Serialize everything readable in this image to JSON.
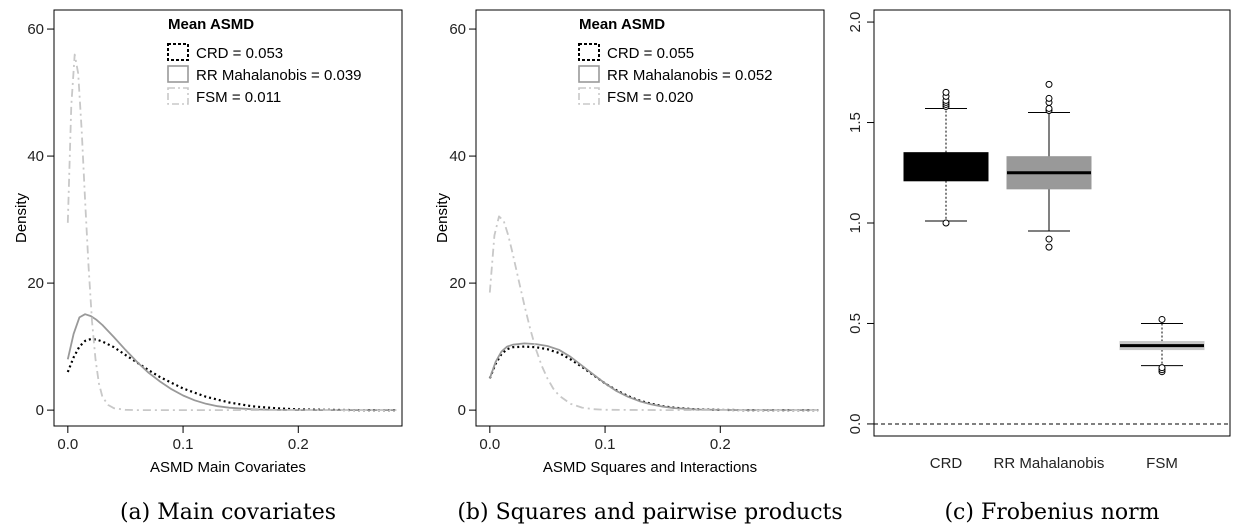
{
  "colors": {
    "crd": "#000000",
    "rr": "#999999",
    "fsm": "#c8c8c8"
  },
  "chart_data": [
    {
      "type": "line",
      "caption": "(a) Main covariates",
      "xlabel": "ASMD Main Covariates",
      "ylabel": "Density",
      "xlim": [
        -0.012,
        0.29
      ],
      "ylim": [
        -2.5,
        63
      ],
      "xticks": [
        0.0,
        0.1,
        0.2
      ],
      "xtick_labels": [
        "0.0",
        "0.1",
        "0.2"
      ],
      "yticks": [
        0,
        20,
        40,
        60
      ],
      "ytick_labels": [
        "0",
        "20",
        "40",
        "60"
      ],
      "legend": {
        "title": "Mean ASMD",
        "position": "top-center",
        "entries": [
          {
            "label": "CRD =  0.053",
            "style": "dotted",
            "color": "#000000"
          },
          {
            "label": "RR Mahalanobis =  0.039",
            "style": "solid",
            "color": "#999999"
          },
          {
            "label": "FSM =  0.011",
            "style": "dashdot",
            "color": "#c8c8c8"
          }
        ]
      },
      "series": [
        {
          "name": "CRD",
          "style": "dotted",
          "color": "#000000",
          "x": [
            0.0,
            0.005,
            0.01,
            0.015,
            0.02,
            0.025,
            0.03,
            0.04,
            0.05,
            0.06,
            0.07,
            0.08,
            0.1,
            0.12,
            0.14,
            0.16,
            0.18,
            0.2,
            0.22,
            0.25,
            0.285
          ],
          "y": [
            6,
            8.3,
            10,
            10.9,
            11.2,
            11.1,
            10.8,
            9.9,
            8.7,
            7.5,
            6.3,
            5.2,
            3.4,
            2.1,
            1.2,
            0.6,
            0.3,
            0.12,
            0.05,
            0.01,
            0
          ]
        },
        {
          "name": "RR Mahalanobis",
          "style": "solid",
          "color": "#999999",
          "x": [
            0.0,
            0.005,
            0.01,
            0.015,
            0.02,
            0.025,
            0.03,
            0.04,
            0.05,
            0.06,
            0.07,
            0.08,
            0.09,
            0.1,
            0.11,
            0.12,
            0.13,
            0.14,
            0.16,
            0.18,
            0.2,
            0.22,
            0.25,
            0.285
          ],
          "y": [
            8,
            12,
            14.6,
            15.1,
            14.8,
            14.2,
            13.4,
            11.5,
            9.5,
            7.6,
            5.9,
            4.5,
            3.3,
            2.3,
            1.55,
            1.0,
            0.62,
            0.38,
            0.13,
            0.04,
            0.01,
            0,
            0,
            0
          ]
        },
        {
          "name": "FSM",
          "style": "dashdot",
          "color": "#c8c8c8",
          "x": [
            0.0,
            0.003,
            0.006,
            0.009,
            0.012,
            0.015,
            0.018,
            0.021,
            0.024,
            0.027,
            0.03,
            0.035,
            0.04,
            0.05,
            0.06,
            0.1,
            0.15,
            0.2,
            0.285
          ],
          "y": [
            29.5,
            48,
            56,
            53,
            44,
            33,
            22.5,
            14,
            8,
            4.2,
            2.1,
            0.8,
            0.3,
            0.05,
            0,
            0,
            0,
            0,
            0
          ]
        }
      ]
    },
    {
      "type": "line",
      "caption": "(b) Squares and pairwise products",
      "xlabel": "ASMD Squares and Interactions",
      "ylabel": "Density",
      "xlim": [
        -0.012,
        0.29
      ],
      "ylim": [
        -2.5,
        63
      ],
      "xticks": [
        0.0,
        0.1,
        0.2
      ],
      "xtick_labels": [
        "0.0",
        "0.1",
        "0.2"
      ],
      "yticks": [
        0,
        20,
        40,
        60
      ],
      "ytick_labels": [
        "0",
        "20",
        "40",
        "60"
      ],
      "legend": {
        "title": "Mean ASMD",
        "position": "top-center",
        "entries": [
          {
            "label": "CRD =  0.055",
            "style": "dotted",
            "color": "#000000"
          },
          {
            "label": "RR Mahalanobis =  0.052",
            "style": "solid",
            "color": "#999999"
          },
          {
            "label": "FSM =  0.020",
            "style": "dashdot",
            "color": "#c8c8c8"
          }
        ]
      },
      "series": [
        {
          "name": "CRD",
          "style": "dotted",
          "color": "#000000",
          "x": [
            0.0,
            0.005,
            0.01,
            0.015,
            0.02,
            0.03,
            0.04,
            0.05,
            0.06,
            0.07,
            0.08,
            0.09,
            0.1,
            0.11,
            0.12,
            0.13,
            0.14,
            0.15,
            0.16,
            0.18,
            0.2,
            0.22,
            0.25,
            0.285
          ],
          "y": [
            5,
            7.3,
            8.8,
            9.6,
            9.9,
            10.0,
            9.9,
            9.6,
            9.0,
            8.0,
            6.8,
            5.5,
            4.2,
            3.1,
            2.2,
            1.5,
            1.0,
            0.62,
            0.38,
            0.12,
            0.03,
            0.01,
            0,
            0
          ]
        },
        {
          "name": "RR Mahalanobis",
          "style": "solid",
          "color": "#999999",
          "x": [
            0.0,
            0.005,
            0.01,
            0.015,
            0.02,
            0.03,
            0.04,
            0.05,
            0.06,
            0.07,
            0.08,
            0.09,
            0.1,
            0.11,
            0.12,
            0.13,
            0.14,
            0.15,
            0.16,
            0.18,
            0.2,
            0.22,
            0.25,
            0.285
          ],
          "y": [
            5,
            7.6,
            9.2,
            10.0,
            10.3,
            10.5,
            10.4,
            10.1,
            9.5,
            8.4,
            7.0,
            5.6,
            4.2,
            3.0,
            2.1,
            1.4,
            0.9,
            0.55,
            0.32,
            0.1,
            0.03,
            0.01,
            0,
            0
          ]
        },
        {
          "name": "FSM",
          "style": "dashdot",
          "color": "#c8c8c8",
          "x": [
            0.0,
            0.004,
            0.008,
            0.012,
            0.016,
            0.02,
            0.025,
            0.03,
            0.035,
            0.04,
            0.045,
            0.05,
            0.055,
            0.06,
            0.07,
            0.08,
            0.09,
            0.1,
            0.15,
            0.2,
            0.285
          ],
          "y": [
            18.5,
            27.5,
            30.5,
            29.8,
            27.5,
            24.5,
            20.5,
            16.5,
            12.8,
            9.6,
            7.0,
            5.0,
            3.4,
            2.3,
            1.0,
            0.4,
            0.15,
            0.05,
            0,
            0,
            0
          ]
        }
      ]
    },
    {
      "type": "box",
      "caption": "(c) Frobenius norm",
      "ylim": [
        -0.06,
        2.06
      ],
      "yticks": [
        0.0,
        0.5,
        1.0,
        1.5,
        2.0
      ],
      "ytick_labels": [
        "0.0",
        "0.5",
        "1.0",
        "1.5",
        "2.0"
      ],
      "reference_line": {
        "y": 0,
        "style": "dashed"
      },
      "categories": [
        "CRD",
        "RR Mahalanobis",
        "FSM"
      ],
      "boxes": [
        {
          "name": "CRD",
          "color": "#000000",
          "min": 1.01,
          "q1": 1.21,
          "median": 1.28,
          "q3": 1.35,
          "max": 1.57,
          "outliers": [
            1.0,
            1.58,
            1.59,
            1.6,
            1.61,
            1.63,
            1.65
          ]
        },
        {
          "name": "RR Mahalanobis",
          "color": "#999999",
          "min": 0.96,
          "q1": 1.17,
          "median": 1.25,
          "q3": 1.33,
          "max": 1.55,
          "outliers": [
            0.88,
            0.92,
            1.56,
            1.57,
            1.6,
            1.62,
            1.69
          ]
        },
        {
          "name": "FSM",
          "color": "#c8c8c8",
          "min": 0.29,
          "q1": 0.37,
          "median": 0.39,
          "q3": 0.41,
          "max": 0.5,
          "outliers": [
            0.26,
            0.27,
            0.28,
            0.52
          ]
        }
      ]
    }
  ]
}
